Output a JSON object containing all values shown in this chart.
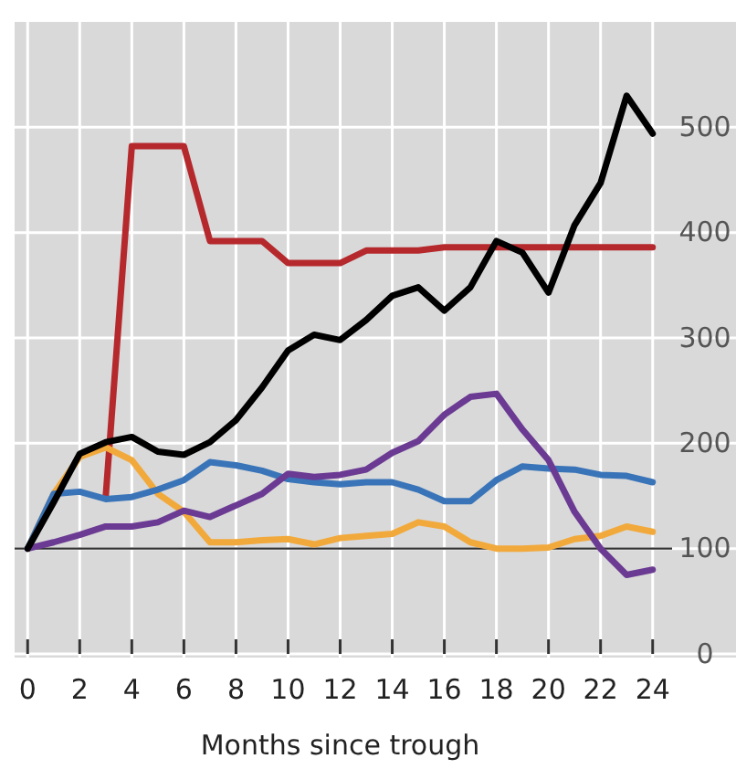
{
  "chart_data": {
    "type": "line",
    "xlabel": "Months since trough",
    "x": [
      0,
      1,
      2,
      3,
      4,
      5,
      6,
      7,
      8,
      9,
      10,
      11,
      12,
      13,
      14,
      15,
      16,
      17,
      18,
      19,
      20,
      21,
      22,
      23,
      24
    ],
    "xlim": [
      -0.5,
      27.2
    ],
    "xticks": [
      0,
      2,
      4,
      6,
      8,
      10,
      12,
      14,
      16,
      18,
      20,
      22,
      24
    ],
    "ylim": [
      0,
      600
    ],
    "yticks": [
      0,
      100,
      200,
      300,
      400,
      500
    ],
    "grid": true,
    "line_style": "solid",
    "marker": "none",
    "ref_lines": [
      {
        "axis": "y",
        "value": 100,
        "color": "#333333"
      }
    ],
    "series": [
      {
        "color": "#b5292d",
        "values": [
          null,
          null,
          null,
          150,
          482,
          482,
          482,
          392,
          392,
          392,
          371,
          371,
          371,
          383,
          383,
          383,
          386,
          386,
          386,
          386,
          386,
          386,
          386,
          386,
          386
        ]
      },
      {
        "color": "#f2a93b",
        "values": [
          100,
          152,
          187,
          196,
          184,
          152,
          135,
          106,
          106,
          108,
          109,
          104,
          110,
          112,
          114,
          125,
          121,
          106,
          100,
          100,
          101,
          109,
          112,
          121,
          116
        ]
      },
      {
        "color": "#3a74b8",
        "values": [
          100,
          152,
          154,
          147,
          149,
          156,
          165,
          182,
          179,
          174,
          166,
          163,
          161,
          163,
          163,
          156,
          145,
          145,
          165,
          178,
          176,
          175,
          170,
          169,
          163
        ]
      },
      {
        "color": "#6b3a93",
        "values": [
          100,
          106,
          113,
          121,
          121,
          125,
          136,
          130,
          141,
          152,
          171,
          168,
          170,
          175,
          191,
          202,
          227,
          244,
          247,
          213,
          184,
          135,
          100,
          75,
          80
        ]
      },
      {
        "color": "#000000",
        "values": [
          100,
          144,
          190,
          201,
          206,
          192,
          189,
          201,
          222,
          253,
          288,
          303,
          298,
          317,
          340,
          348,
          326,
          348,
          392,
          381,
          343,
          407,
          447,
          530,
          494
        ]
      }
    ]
  }
}
